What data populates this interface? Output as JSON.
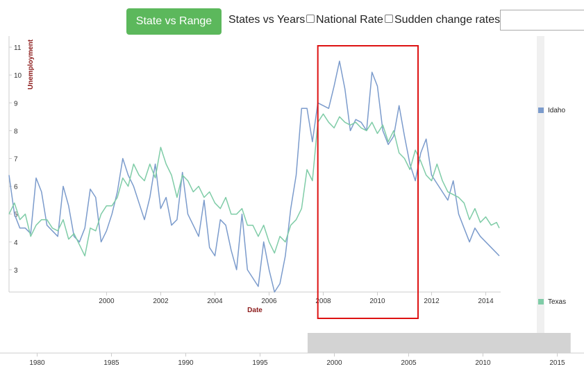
{
  "toolbar": {
    "state_range_label": "State vs Range",
    "years_label": "States vs Years",
    "national_label": "National Rate",
    "sudden_label": "Sudden change rates",
    "search_value": ""
  },
  "colors": {
    "idaho": "#7b9bcc",
    "texas": "#7fcca7",
    "highlight": "#dd1111",
    "accent": "#5cb85c",
    "axis_title": "#8b1a1a",
    "brush": "#d3d3d3"
  },
  "chart_data": {
    "type": "line",
    "xlabel": "Date",
    "ylabel": "Unemployment",
    "xlim": [
      1996.4,
      2014.55
    ],
    "ylim": [
      2.2,
      11.4
    ],
    "x_ticks": [
      "2000",
      "2002",
      "2004",
      "2006",
      "2008",
      "2010",
      "2012",
      "2014"
    ],
    "y_ticks": [
      "3",
      "4",
      "5",
      "6",
      "7",
      "8",
      "9",
      "10",
      "11"
    ],
    "legend_position": "right",
    "highlight_range": [
      2007.8,
      2011.5
    ],
    "series": [
      {
        "name": "Idaho",
        "x": [
          1996.4,
          1996.6,
          1996.8,
          1997.0,
          1997.2,
          1997.4,
          1997.6,
          1997.8,
          1998.0,
          1998.2,
          1998.4,
          1998.6,
          1998.8,
          1999.0,
          1999.2,
          1999.4,
          1999.6,
          1999.8,
          2000.0,
          2000.2,
          2000.4,
          2000.6,
          2000.8,
          2001.0,
          2001.2,
          2001.4,
          2001.6,
          2001.8,
          2002.0,
          2002.2,
          2002.4,
          2002.6,
          2002.8,
          2003.0,
          2003.2,
          2003.4,
          2003.6,
          2003.8,
          2004.0,
          2004.2,
          2004.4,
          2004.6,
          2004.8,
          2005.0,
          2005.2,
          2005.4,
          2005.6,
          2005.8,
          2006.0,
          2006.2,
          2006.4,
          2006.6,
          2006.8,
          2007.0,
          2007.2,
          2007.4,
          2007.6,
          2007.8,
          2008.0,
          2008.2,
          2008.4,
          2008.6,
          2008.8,
          2009.0,
          2009.2,
          2009.4,
          2009.6,
          2009.8,
          2010.0,
          2010.2,
          2010.4,
          2010.6,
          2010.8,
          2011.0,
          2011.2,
          2011.4,
          2011.6,
          2011.8,
          2012.0,
          2012.2,
          2012.4,
          2012.6,
          2012.8,
          2013.0,
          2013.2,
          2013.4,
          2013.6,
          2013.8,
          2014.0,
          2014.2,
          2014.4,
          2014.5
        ],
        "values": [
          6.4,
          5.0,
          4.5,
          4.5,
          4.3,
          6.3,
          5.8,
          4.6,
          4.4,
          4.2,
          6.0,
          5.3,
          4.2,
          4.0,
          4.5,
          5.9,
          5.6,
          4.0,
          4.4,
          5.0,
          5.8,
          7.0,
          6.4,
          6.0,
          5.4,
          4.8,
          5.6,
          6.8,
          5.2,
          5.6,
          4.6,
          4.8,
          6.5,
          5.0,
          4.6,
          4.2,
          5.5,
          3.8,
          3.5,
          4.8,
          4.6,
          3.7,
          3.0,
          5.0,
          3.0,
          2.7,
          2.4,
          4.0,
          3.0,
          2.2,
          2.5,
          3.5,
          5.2,
          6.4,
          8.8,
          8.8,
          7.6,
          9.0,
          8.9,
          8.8,
          9.6,
          10.5,
          9.5,
          8.0,
          8.4,
          8.3,
          8.0,
          10.1,
          9.6,
          8.0,
          7.5,
          7.8,
          8.9,
          7.8,
          6.8,
          6.2,
          7.2,
          7.7,
          6.4,
          6.1,
          5.8,
          5.5,
          6.2,
          5.0,
          4.5,
          4.0,
          4.5,
          4.2,
          4.0,
          3.8,
          3.6,
          3.5
        ]
      },
      {
        "name": "Texas",
        "x": [
          1996.4,
          1996.6,
          1996.8,
          1997.0,
          1997.2,
          1997.4,
          1997.6,
          1997.8,
          1998.0,
          1998.2,
          1998.4,
          1998.6,
          1998.8,
          1999.0,
          1999.2,
          1999.4,
          1999.6,
          1999.8,
          2000.0,
          2000.2,
          2000.4,
          2000.6,
          2000.8,
          2001.0,
          2001.2,
          2001.4,
          2001.6,
          2001.8,
          2002.0,
          2002.2,
          2002.4,
          2002.6,
          2002.8,
          2003.0,
          2003.2,
          2003.4,
          2003.6,
          2003.8,
          2004.0,
          2004.2,
          2004.4,
          2004.6,
          2004.8,
          2005.0,
          2005.2,
          2005.4,
          2005.6,
          2005.8,
          2006.0,
          2006.2,
          2006.4,
          2006.6,
          2006.8,
          2007.0,
          2007.2,
          2007.4,
          2007.6,
          2007.8,
          2008.0,
          2008.2,
          2008.4,
          2008.6,
          2008.8,
          2009.0,
          2009.2,
          2009.4,
          2009.6,
          2009.8,
          2010.0,
          2010.2,
          2010.4,
          2010.6,
          2010.8,
          2011.0,
          2011.2,
          2011.4,
          2011.6,
          2011.8,
          2012.0,
          2012.2,
          2012.4,
          2012.6,
          2012.8,
          2013.0,
          2013.2,
          2013.4,
          2013.6,
          2013.8,
          2014.0,
          2014.2,
          2014.4,
          2014.5
        ],
        "values": [
          5.0,
          5.4,
          4.8,
          5.0,
          4.2,
          4.6,
          4.8,
          4.8,
          4.5,
          4.4,
          4.8,
          4.1,
          4.3,
          3.9,
          3.5,
          4.5,
          4.4,
          5.0,
          5.3,
          5.3,
          5.6,
          6.3,
          6.0,
          6.8,
          6.4,
          6.2,
          6.8,
          6.3,
          7.4,
          6.8,
          6.4,
          5.6,
          6.4,
          6.2,
          5.8,
          6.0,
          5.6,
          5.8,
          5.4,
          5.2,
          5.6,
          5.0,
          5.0,
          5.2,
          4.6,
          4.6,
          4.2,
          4.6,
          4.0,
          3.6,
          4.2,
          4.0,
          4.6,
          4.8,
          5.2,
          6.6,
          6.2,
          8.3,
          8.6,
          8.3,
          8.1,
          8.5,
          8.3,
          8.2,
          8.3,
          8.1,
          8.0,
          8.3,
          7.9,
          8.2,
          7.6,
          8.0,
          7.2,
          7.0,
          6.6,
          7.3,
          6.9,
          6.4,
          6.2,
          6.8,
          6.2,
          5.8,
          5.7,
          5.6,
          5.4,
          4.8,
          5.2,
          4.7,
          4.9,
          4.6,
          4.7,
          4.5
        ]
      }
    ]
  },
  "context_axis": {
    "ticks": [
      "1980",
      "1985",
      "1990",
      "1995",
      "2000",
      "2005",
      "2010",
      "2015"
    ],
    "range": [
      1977.5,
      2016.8
    ],
    "brush": [
      1998.2,
      2015.9
    ]
  }
}
